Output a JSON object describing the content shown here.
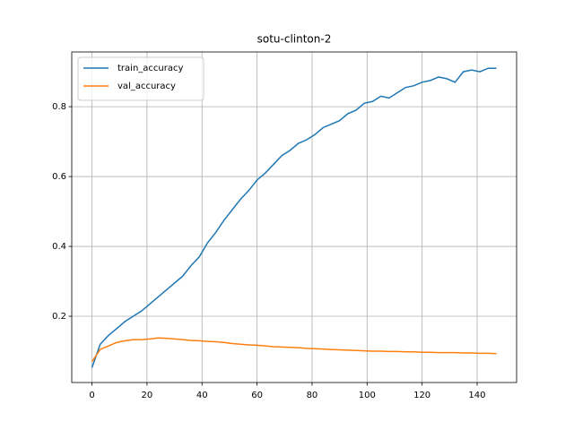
{
  "chart_data": {
    "type": "line",
    "title": "sotu-clinton-2",
    "x": [
      0,
      3,
      6,
      9,
      12,
      15,
      18,
      21,
      24,
      27,
      30,
      33,
      36,
      39,
      42,
      45,
      48,
      51,
      54,
      57,
      60,
      63,
      66,
      69,
      72,
      75,
      78,
      81,
      84,
      87,
      90,
      93,
      96,
      99,
      102,
      105,
      108,
      111,
      114,
      117,
      120,
      123,
      126,
      129,
      132,
      135,
      138,
      141,
      144,
      147
    ],
    "series": [
      {
        "name": "train_accuracy",
        "color": "#1f77b4",
        "values": [
          0.053,
          0.12,
          0.145,
          0.165,
          0.185,
          0.2,
          0.215,
          0.235,
          0.255,
          0.275,
          0.295,
          0.315,
          0.345,
          0.37,
          0.41,
          0.44,
          0.475,
          0.505,
          0.535,
          0.56,
          0.59,
          0.61,
          0.635,
          0.66,
          0.675,
          0.695,
          0.705,
          0.72,
          0.74,
          0.75,
          0.76,
          0.78,
          0.79,
          0.81,
          0.815,
          0.83,
          0.825,
          0.84,
          0.855,
          0.86,
          0.87,
          0.875,
          0.885,
          0.88,
          0.87,
          0.9,
          0.905,
          0.9,
          0.91,
          0.91
        ]
      },
      {
        "name": "val_accuracy",
        "color": "#ff7f0e",
        "values": [
          0.07,
          0.105,
          0.115,
          0.125,
          0.13,
          0.133,
          0.133,
          0.135,
          0.138,
          0.137,
          0.135,
          0.133,
          0.131,
          0.13,
          0.128,
          0.127,
          0.125,
          0.122,
          0.12,
          0.118,
          0.117,
          0.115,
          0.113,
          0.112,
          0.111,
          0.11,
          0.108,
          0.107,
          0.106,
          0.105,
          0.104,
          0.103,
          0.102,
          0.101,
          0.1,
          0.1,
          0.099,
          0.099,
          0.098,
          0.098,
          0.097,
          0.097,
          0.096,
          0.096,
          0.096,
          0.095,
          0.095,
          0.094,
          0.094,
          0.093
        ]
      }
    ],
    "xlim": [
      -7.35,
      154.35
    ],
    "ylim": [
      0.0103,
      0.9567
    ],
    "xticks": [
      0,
      20,
      40,
      60,
      80,
      100,
      120,
      140
    ],
    "yticks": [
      0.2,
      0.4,
      0.6,
      0.8
    ],
    "grid": true,
    "legend": "upper-left"
  }
}
